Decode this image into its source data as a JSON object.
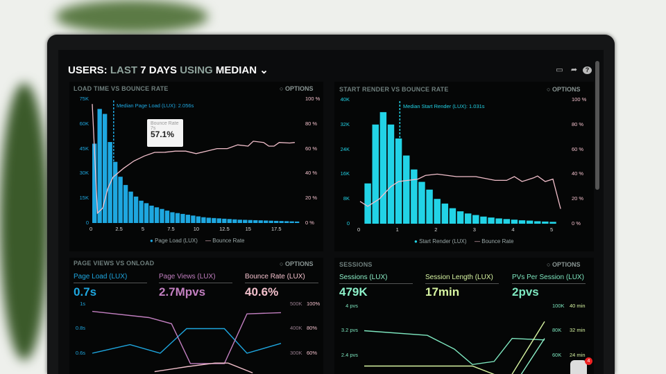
{
  "header": {
    "title_parts": [
      "USERS:",
      "LAST",
      "7 DAYS",
      "USING",
      "MEDIAN"
    ],
    "icons": [
      "monitor-icon",
      "share-icon",
      "help-icon"
    ]
  },
  "colors": {
    "page_load": "#1ea7e0",
    "start_render": "#22d3e6",
    "bounce": "#f3c0cc",
    "page_views": "#c27fc0",
    "pvs": "#7ee8c0",
    "session_length": "#d8f5a2",
    "sessions": "#8cf0c8"
  },
  "options_label": "OPTIONS",
  "chart_data": [
    {
      "type": "bar",
      "title": "LOAD TIME VS BOUNCE RATE",
      "annotation": "Median Page Load (LUX): 2.056s",
      "median": 2.056,
      "x_ticks": [
        "0",
        "2.5",
        "5",
        "7.5",
        "10",
        "12.5",
        "15",
        "17.5"
      ],
      "y_ticks": [
        "0",
        "15K",
        "30K",
        "45K",
        "60K",
        "75K"
      ],
      "y2_ticks": [
        "0 %",
        "20 %",
        "40 %",
        "60 %",
        "80 %",
        "100 %"
      ],
      "xlim": [
        0,
        19.5
      ],
      "ylim": [
        0,
        75000
      ],
      "y2lim": [
        0,
        100
      ],
      "tooltip": {
        "label": "Bounce Rate",
        "x": "7s",
        "value": "57.1%"
      },
      "series": [
        {
          "name": "Page Load (LUX)",
          "type": "bar",
          "x_step": 0.5,
          "values": [
            48000,
            69000,
            66000,
            49000,
            37000,
            28000,
            23000,
            19000,
            16000,
            13500,
            12000,
            10500,
            9500,
            8500,
            7500,
            6500,
            6000,
            5500,
            5000,
            4500,
            4000,
            3500,
            3200,
            3000,
            2800,
            2600,
            2400,
            2200,
            2000,
            1900,
            1800,
            1700,
            1600,
            1500,
            1400,
            1300,
            1200,
            1100,
            1000,
            900
          ]
        },
        {
          "name": "Bounce Rate",
          "type": "line",
          "points": [
            [
              0,
              96
            ],
            [
              0.5,
              8
            ],
            [
              1,
              12
            ],
            [
              1.5,
              28
            ],
            [
              2,
              37
            ],
            [
              3,
              44
            ],
            [
              4,
              50
            ],
            [
              5,
              54
            ],
            [
              6,
              57
            ],
            [
              7,
              57.1
            ],
            [
              8,
              58
            ],
            [
              9,
              58
            ],
            [
              10,
              56
            ],
            [
              11,
              58
            ],
            [
              12,
              60
            ],
            [
              13,
              60
            ],
            [
              14,
              63
            ],
            [
              15,
              62
            ],
            [
              15.5,
              66
            ],
            [
              16.5,
              65
            ],
            [
              17,
              62
            ],
            [
              17.5,
              62
            ],
            [
              18,
              65
            ],
            [
              19,
              64.5
            ],
            [
              19.5,
              65
            ]
          ]
        }
      ]
    },
    {
      "type": "bar",
      "title": "START RENDER VS BOUNCE RATE",
      "annotation": "Median Start Render (LUX): 1.031s",
      "median": 1.031,
      "x_ticks": [
        "0",
        "1",
        "2",
        "3",
        "4",
        "5"
      ],
      "y_ticks": [
        "0",
        "8K",
        "16K",
        "24K",
        "32K",
        "40K"
      ],
      "y2_ticks": [
        "0 %",
        "20 %",
        "40 %",
        "60 %",
        "80 %",
        "100 %"
      ],
      "xlim": [
        0,
        5.2
      ],
      "ylim": [
        0,
        40000
      ],
      "y2lim": [
        0,
        100
      ],
      "series": [
        {
          "name": "Start Render (LUX)",
          "type": "bar",
          "x_step": 0.2,
          "values": [
            13000,
            32000,
            36000,
            32000,
            27500,
            22000,
            17500,
            13500,
            11000,
            8000,
            6500,
            5000,
            4000,
            3300,
            2800,
            2300,
            2000,
            1700,
            1500,
            1300,
            1100,
            1000,
            800,
            700,
            600
          ]
        },
        {
          "name": "Bounce Rate",
          "type": "line",
          "points": [
            [
              0,
              18
            ],
            [
              0.2,
              14
            ],
            [
              0.5,
              20
            ],
            [
              0.8,
              30
            ],
            [
              1,
              34
            ],
            [
              1.5,
              36
            ],
            [
              1.7,
              39
            ],
            [
              2,
              40
            ],
            [
              2.5,
              38
            ],
            [
              3,
              38
            ],
            [
              3.5,
              35
            ],
            [
              3.8,
              35
            ],
            [
              4,
              38
            ],
            [
              4.2,
              34
            ],
            [
              4.5,
              37
            ],
            [
              4.6,
              38.5
            ],
            [
              4.8,
              34
            ],
            [
              5,
              36
            ],
            [
              5.2,
              12
            ]
          ]
        }
      ]
    },
    {
      "type": "line",
      "title": "PAGE VIEWS VS ONLOAD",
      "kpis": [
        {
          "label": "Page Load (LUX)",
          "value": "0.7s"
        },
        {
          "label": "Page Views (LUX)",
          "value": "2.7Mpvs"
        },
        {
          "label": "Bounce Rate (LUX)",
          "value": "40.6%"
        }
      ],
      "y_ticks": [
        "1s",
        "0.8s",
        "0.6s"
      ],
      "y2_ticks": [
        "500K",
        "400K",
        "300K"
      ],
      "y3_ticks": [
        "100%",
        "80%",
        "60%"
      ],
      "series": [
        {
          "name": "Page Load (LUX)",
          "points": [
            [
              0,
              0.6
            ],
            [
              0.2,
              0.67
            ],
            [
              0.36,
              0.6
            ],
            [
              0.5,
              0.8
            ],
            [
              0.7,
              0.8
            ],
            [
              0.82,
              0.6
            ],
            [
              1,
              0.68
            ]
          ]
        },
        {
          "name": "Page Views (LUX)",
          "points": [
            [
              0,
              470
            ],
            [
              0.3,
              445
            ],
            [
              0.42,
              420
            ],
            [
              0.52,
              258
            ],
            [
              0.7,
              258
            ],
            [
              0.82,
              460
            ],
            [
              1,
              465
            ]
          ]
        },
        {
          "name": "Bounce Rate (LUX)",
          "points": [
            [
              0.33,
              45
            ],
            [
              0.5,
              49
            ],
            [
              0.65,
              52
            ],
            [
              0.72,
              52
            ],
            [
              0.85,
              44
            ]
          ]
        }
      ]
    },
    {
      "type": "line",
      "title": "SESSIONS",
      "kpis": [
        {
          "label": "Sessions (LUX)",
          "value": "479K"
        },
        {
          "label": "Session Length (LUX)",
          "value": "17min"
        },
        {
          "label": "PVs Per Session (LUX)",
          "value": "2pvs"
        }
      ],
      "y_ticks": [
        "4 pvs",
        "3.2 pvs",
        "2.4 pvs"
      ],
      "y2_ticks": [
        "100K",
        "80K",
        "60K"
      ],
      "y3_ticks": [
        "40 min",
        "32 min",
        "24 min"
      ],
      "series": [
        {
          "name": "PVs Per Session (LUX)",
          "points": [
            [
              0,
              3.2
            ],
            [
              0.35,
              3.05
            ],
            [
              0.5,
              2.6
            ],
            [
              0.6,
              2.1
            ],
            [
              0.72,
              2.2
            ],
            [
              0.82,
              2.95
            ],
            [
              1,
              2.9
            ]
          ]
        },
        {
          "name": "Session Length (LUX)",
          "points": [
            [
              0,
              2.05
            ],
            [
              0.4,
              2.05
            ],
            [
              0.6,
              2.05
            ],
            [
              0.8,
              1.6
            ],
            [
              1,
              3.5
            ]
          ]
        },
        {
          "name": "Sessions (LUX)",
          "points": [
            [
              0.85,
              1.6
            ],
            [
              1,
              2.95
            ]
          ]
        }
      ]
    }
  ],
  "notification_count": "4"
}
